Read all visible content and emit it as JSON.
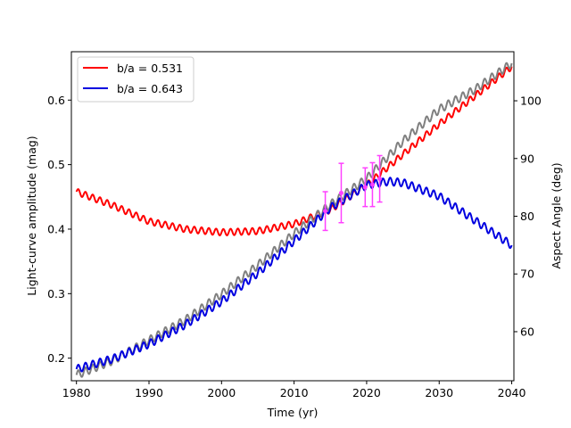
{
  "chart_data": {
    "type": "line",
    "title": "",
    "xlabel": "Time (yr)",
    "ylabel_left": "Light-curve amplitude (mag)",
    "ylabel_right": "Aspect Angle (deg)",
    "xlim": [
      1979.3,
      2040.3
    ],
    "ylim_left": [
      0.165,
      0.675
    ],
    "ylim_right": [
      51.5,
      108.5
    ],
    "x_ticks": [
      1980,
      1990,
      2000,
      2010,
      2020,
      2030,
      2040
    ],
    "y_ticks_left": [
      0.2,
      0.3,
      0.4,
      0.5,
      0.6
    ],
    "y_ticks_right": [
      60,
      70,
      80,
      90,
      100
    ],
    "grid": false,
    "legend_position": "upper-left",
    "series": [
      {
        "name": "b/a = 0.531",
        "color": "#ff0000",
        "axis": "left",
        "x": [
          1980,
          1985,
          1990,
          1995,
          2000,
          2005,
          2010,
          2015,
          2020,
          2025,
          2030,
          2035,
          2040
        ],
        "values": [
          0.458,
          0.437,
          0.412,
          0.4,
          0.395,
          0.397,
          0.408,
          0.43,
          0.468,
          0.516,
          0.563,
          0.607,
          0.652
        ],
        "oscillation_amplitude": 0.005
      },
      {
        "name": "",
        "color": "#808080",
        "axis": "right",
        "x": [
          1980,
          1985,
          1990,
          1995,
          2000,
          2005,
          2010,
          2015,
          2020,
          2025,
          2030,
          2035,
          2040
        ],
        "values": [
          52.5,
          55.0,
          58.5,
          62.0,
          66.5,
          71.5,
          77.0,
          82.0,
          86.5,
          93.0,
          98.5,
          102.0,
          106.5
        ],
        "oscillation_amplitude": 0.7
      },
      {
        "name": "b/a = 0.643",
        "color": "#0000e0",
        "axis": "left",
        "x": [
          1980,
          1985,
          1990,
          1995,
          2000,
          2005,
          2010,
          2015,
          2020,
          2023,
          2025,
          2030,
          2035,
          2040
        ],
        "values": [
          0.183,
          0.199,
          0.222,
          0.252,
          0.288,
          0.332,
          0.382,
          0.433,
          0.468,
          0.474,
          0.472,
          0.451,
          0.413,
          0.375
        ],
        "oscillation_amplitude": 0.006
      }
    ],
    "observations": {
      "name": "",
      "color": "#ff40ff",
      "x": [
        2014.3,
        2016.5,
        2019.8,
        2020.8,
        2021.8
      ],
      "values": [
        0.428,
        0.456,
        0.465,
        0.469,
        0.478
      ],
      "err": [
        0.03,
        0.046,
        0.03,
        0.034,
        0.036
      ]
    }
  }
}
